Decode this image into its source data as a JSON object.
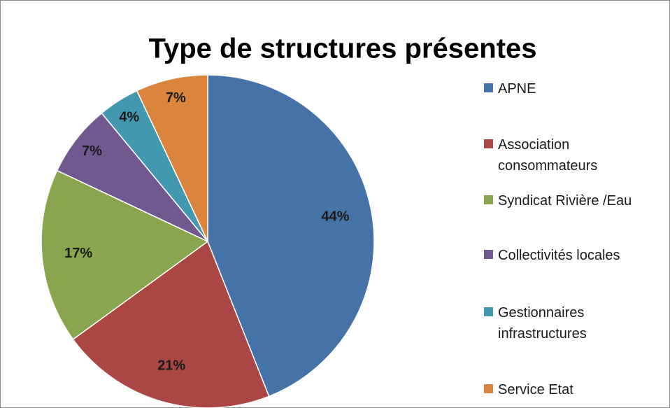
{
  "chart_data": {
    "type": "pie",
    "title": "Type de structures présentes",
    "categories": [
      "APNE",
      "Association consommateurs",
      "Syndicat Rivière /Eau",
      "Collectivités locales",
      "Gestionnaires infrastructures",
      "Service Etat"
    ],
    "values": [
      44,
      21,
      17,
      7,
      4,
      7
    ],
    "value_labels": [
      "44%",
      "21%",
      "17%",
      "7%",
      "4%",
      "7%"
    ],
    "colors": [
      "#4572a7",
      "#aa4643",
      "#89a54e",
      "#71588f",
      "#4198af",
      "#db843d"
    ],
    "legend": "right"
  }
}
